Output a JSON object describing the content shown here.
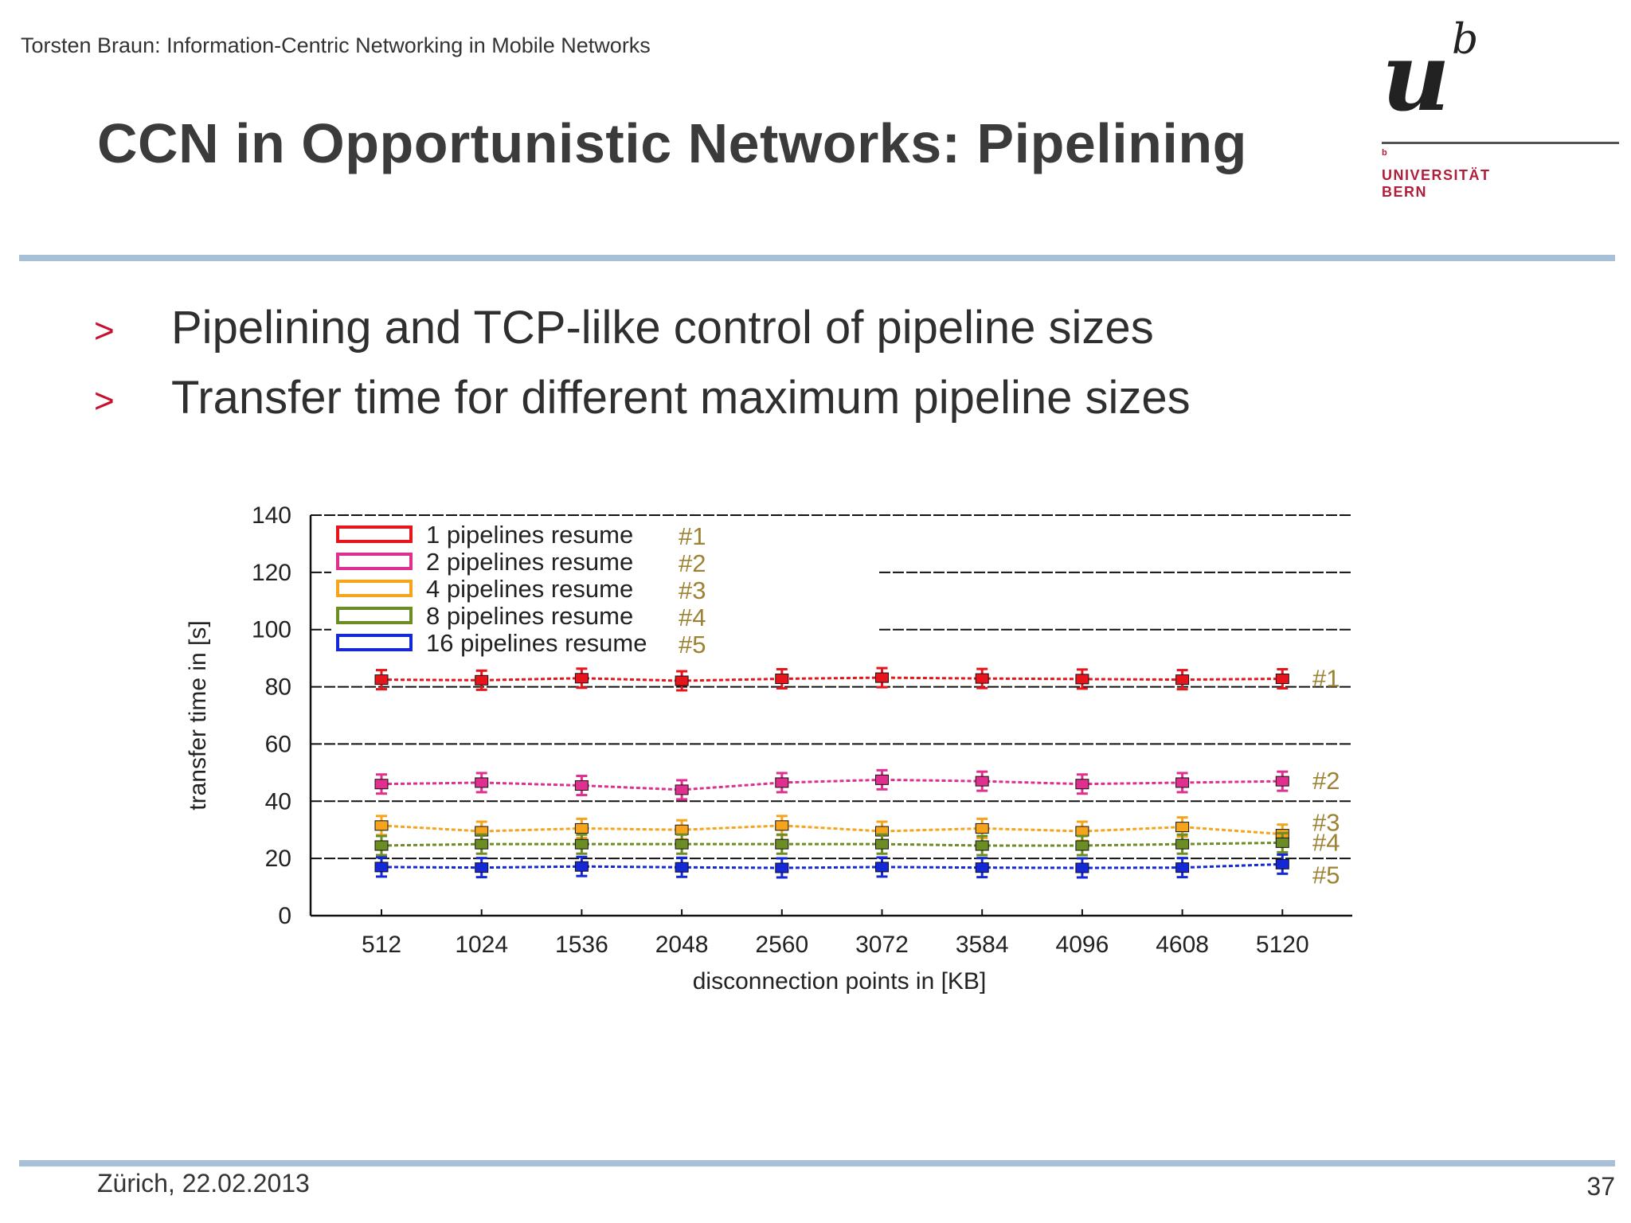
{
  "header": {
    "text": "Torsten Braun: Information-Centric Networking in Mobile Networks"
  },
  "slide": {
    "title": "CCN in Opportunistic Networks: Pipelining"
  },
  "logo": {
    "letter": "u",
    "superscript": "b",
    "small_b": "b",
    "line1": "UNIVERSITÄT",
    "line2": "BERN",
    "color": "#b11e3a"
  },
  "bullets": [
    {
      "marker": ">",
      "text": "Pipelining and TCP-lilke control of pipeline sizes"
    },
    {
      "marker": ">",
      "text": "Transfer time for different maximum pipeline sizes"
    }
  ],
  "footer": {
    "date": "Zürich, 22.02.2013",
    "page": "37"
  },
  "chart_data": {
    "type": "line",
    "xlabel": "disconnection points in [KB]",
    "ylabel": "transfer time in [s]",
    "ylim": [
      0,
      140
    ],
    "yticks": [
      0,
      20,
      40,
      60,
      80,
      100,
      120,
      140
    ],
    "categories": [
      "512",
      "1024",
      "1536",
      "2048",
      "2560",
      "3072",
      "3584",
      "4096",
      "4608",
      "5120"
    ],
    "legend_position": "top-left",
    "series": [
      {
        "name": "1 pipelines resume",
        "tag": "#1",
        "color": "#e8141c",
        "values": [
          82.5,
          82.3,
          83.0,
          82.1,
          82.8,
          83.2,
          82.9,
          82.7,
          82.5,
          82.8
        ]
      },
      {
        "name": "2 pipelines resume",
        "tag": "#2",
        "color": "#e0308f",
        "values": [
          46.0,
          46.5,
          45.5,
          44.0,
          46.5,
          47.5,
          47.0,
          46.0,
          46.5,
          47.0
        ]
      },
      {
        "name": "4 pipelines resume",
        "tag": "#3",
        "color": "#f5a41c",
        "values": [
          31.5,
          29.5,
          30.5,
          30.0,
          31.5,
          29.5,
          30.5,
          29.5,
          31.0,
          28.5
        ]
      },
      {
        "name": "8 pipelines resume",
        "tag": "#4",
        "color": "#6c8c24",
        "values": [
          24.5,
          25.0,
          25.0,
          25.0,
          25.0,
          25.0,
          24.5,
          24.5,
          25.0,
          25.5
        ]
      },
      {
        "name": "16 pipelines resume",
        "tag": "#5",
        "color": "#1428d8",
        "values": [
          17.0,
          16.8,
          17.2,
          16.9,
          16.7,
          17.0,
          16.8,
          16.7,
          16.8,
          18.0
        ]
      }
    ]
  }
}
